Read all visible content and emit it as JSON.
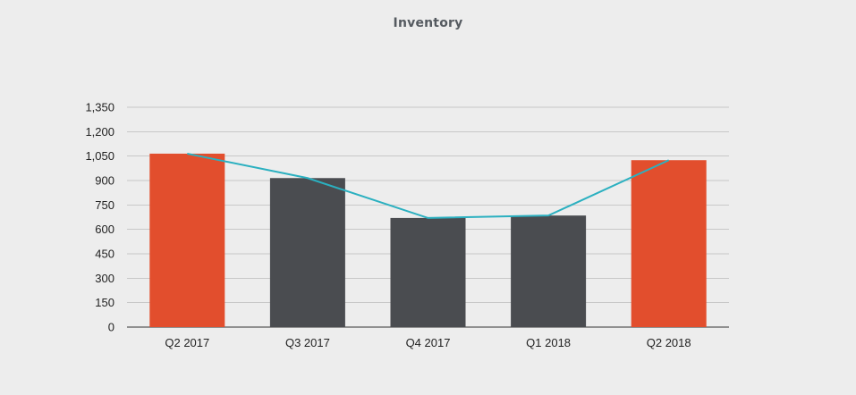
{
  "chart_data": {
    "type": "bar",
    "title": "Inventory",
    "categories": [
      "Q2 2017",
      "Q3 2017",
      "Q4 2017",
      "Q1 2018",
      "Q2 2018"
    ],
    "series": [
      {
        "type": "bar",
        "values": [
          1065,
          915,
          670,
          685,
          1025
        ],
        "colors": [
          "#e24e2d",
          "#4a4c50",
          "#4a4c50",
          "#4a4c50",
          "#e24e2d"
        ]
      },
      {
        "type": "line",
        "values": [
          1065,
          915,
          670,
          685,
          1025
        ],
        "color": "#2bb0c0"
      }
    ],
    "y_ticks": [
      "0",
      "150",
      "300",
      "450",
      "600",
      "750",
      "900",
      "1,050",
      "1,200",
      "1,350"
    ],
    "ylim": [
      0,
      1350
    ],
    "grid": true,
    "gridline_color": "#c8c8c8"
  }
}
